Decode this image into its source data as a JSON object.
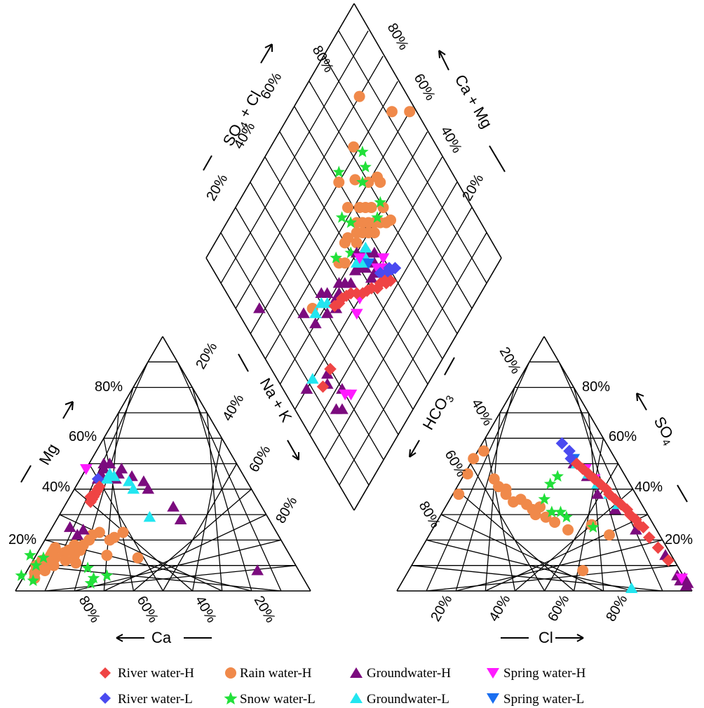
{
  "chart_data": {
    "type": "scatter",
    "subtype": "piper-diagram",
    "title": "",
    "axes": {
      "cation_left": "Mg",
      "cation_bottom": "Ca",
      "anion_right": "SO4",
      "anion_bottom": "Cl",
      "diamond_upper_left": "SO4 + Cl",
      "diamond_upper_right": "Ca + Mg",
      "diamond_lower_left": "Na + K",
      "diamond_lower_right": "HCO3"
    },
    "ticks": {
      "percent": [
        "20%",
        "40%",
        "60%",
        "80%"
      ]
    },
    "legend": {
      "placement": "bottom",
      "entries": [
        {
          "key": "river_h",
          "label": "River water-H",
          "color": "#ef4444",
          "marker": "diamond"
        },
        {
          "key": "rain_h",
          "label": "Rain water-H",
          "color": "#f0894a",
          "marker": "circle"
        },
        {
          "key": "ground_h",
          "label": "Groundwater-H",
          "color": "#7b0b7e",
          "marker": "triangle-up"
        },
        {
          "key": "spring_h",
          "label": "Spring water-H",
          "color": "#ff1aff",
          "marker": "triangle-down"
        },
        {
          "key": "river_l",
          "label": "River water-L",
          "color": "#4a4af0",
          "marker": "diamond"
        },
        {
          "key": "snow_l",
          "label": "Snow water-L",
          "color": "#22e03a",
          "marker": "star"
        },
        {
          "key": "ground_l",
          "label": "Groundwater-L",
          "color": "#22e6f0",
          "marker": "triangle-up"
        },
        {
          "key": "spring_l",
          "label": "Spring water-L",
          "color": "#1a6ef0",
          "marker": "triangle-down"
        }
      ]
    },
    "cation_points": {
      "river_h": [
        [
          40,
          52,
          8
        ],
        [
          38,
          54,
          8
        ],
        [
          37,
          55,
          8
        ],
        [
          39,
          53,
          8
        ],
        [
          36,
          56,
          8
        ],
        [
          41,
          51,
          8
        ],
        [
          35,
          57,
          8
        ],
        [
          37,
          56,
          7
        ]
      ],
      "river_l": [
        [
          44,
          50,
          6
        ]
      ],
      "rain_h": [
        [
          15,
          80,
          5
        ],
        [
          13,
          82,
          5
        ],
        [
          12,
          83,
          5
        ],
        [
          11,
          84,
          5
        ],
        [
          14,
          81,
          5
        ],
        [
          16,
          79,
          5
        ],
        [
          17,
          78,
          5
        ],
        [
          15,
          76,
          9
        ],
        [
          13,
          80,
          7
        ],
        [
          10,
          86,
          4
        ],
        [
          9,
          87,
          4
        ],
        [
          8,
          89,
          3
        ],
        [
          12,
          77,
          11
        ],
        [
          14,
          73,
          13
        ],
        [
          16,
          70,
          14
        ],
        [
          18,
          68,
          14
        ],
        [
          20,
          65,
          15
        ],
        [
          22,
          63,
          15
        ],
        [
          23,
          60,
          17
        ],
        [
          20,
          58,
          22
        ],
        [
          14,
          62,
          24
        ],
        [
          13,
          52,
          35
        ],
        [
          23,
          52,
          25
        ],
        [
          21,
          56,
          23
        ],
        [
          11,
          74,
          15
        ],
        [
          16,
          74,
          10
        ],
        [
          18,
          71,
          11
        ],
        [
          7,
          90,
          3
        ],
        [
          5,
          91,
          4
        ],
        [
          8,
          86,
          6
        ],
        [
          10,
          82,
          8
        ],
        [
          12,
          85,
          3
        ],
        [
          10,
          88,
          2
        ]
      ],
      "ground_h": [
        [
          50,
          45,
          5
        ],
        [
          48,
          46,
          6
        ],
        [
          46,
          48,
          6
        ],
        [
          44,
          50,
          6
        ],
        [
          50,
          43,
          7
        ],
        [
          46,
          42,
          12
        ],
        [
          44,
          44,
          12
        ],
        [
          48,
          40,
          12
        ],
        [
          45,
          38,
          17
        ],
        [
          43,
          35,
          22
        ],
        [
          40,
          35,
          25
        ],
        [
          33,
          30,
          37
        ],
        [
          28,
          30,
          42
        ],
        [
          24,
          65,
          11
        ],
        [
          25,
          69,
          6
        ],
        [
          22,
          68,
          10
        ],
        [
          8,
          14,
          78
        ]
      ],
      "ground_l": [
        [
          44,
          47,
          9
        ],
        [
          46,
          45,
          9
        ],
        [
          45,
          44,
          11
        ],
        [
          43,
          40,
          17
        ],
        [
          40,
          40,
          20
        ],
        [
          29,
          40,
          31
        ]
      ],
      "spring_h": [
        [
          48,
          52,
          0
        ]
      ],
      "spring_l": [],
      "snow_l": [
        [
          6,
          95,
          -1
        ],
        [
          10,
          88,
          2
        ],
        [
          14,
          88,
          -2
        ],
        [
          4,
          92,
          4
        ],
        [
          9,
          71,
          20
        ],
        [
          5,
          71,
          24
        ],
        [
          6,
          66,
          28
        ],
        [
          3,
          73,
          24
        ],
        [
          13,
          84,
          3
        ]
      ]
    },
    "anion_points": {
      "river_h": [
        [
          28,
          5,
          67
        ],
        [
          30,
          6,
          64
        ],
        [
          32,
          6,
          62
        ],
        [
          34,
          7,
          59
        ],
        [
          36,
          8,
          56
        ],
        [
          38,
          9,
          53
        ],
        [
          40,
          9,
          51
        ],
        [
          42,
          10,
          48
        ],
        [
          44,
          11,
          45
        ],
        [
          46,
          12,
          42
        ],
        [
          48,
          13,
          39
        ],
        [
          50,
          14,
          36
        ],
        [
          25,
          4,
          71
        ],
        [
          26,
          5,
          69
        ],
        [
          12,
          2,
          86
        ],
        [
          17,
          3,
          80
        ],
        [
          21,
          4,
          75
        ]
      ],
      "river_l": [
        [
          52,
          15,
          33
        ],
        [
          55,
          14,
          31
        ],
        [
          58,
          15,
          27
        ]
      ],
      "rain_h": [
        [
          55,
          43,
          2
        ],
        [
          52,
          48,
          0
        ],
        [
          46,
          53,
          1
        ],
        [
          38,
          60,
          2
        ],
        [
          44,
          45,
          11
        ],
        [
          41,
          45,
          14
        ],
        [
          40,
          43,
          17
        ],
        [
          38,
          44,
          18
        ],
        [
          35,
          43,
          22
        ],
        [
          36,
          40,
          24
        ],
        [
          34,
          39,
          27
        ],
        [
          32,
          38,
          30
        ],
        [
          30,
          38,
          32
        ],
        [
          29,
          35,
          36
        ],
        [
          33,
          35,
          32
        ],
        [
          27,
          33,
          40
        ],
        [
          24,
          30,
          46
        ],
        [
          22,
          17,
          61
        ],
        [
          26,
          21,
          53
        ],
        [
          8,
          33,
          59
        ]
      ],
      "ground_h": [
        [
          3,
          0,
          97
        ],
        [
          5,
          0,
          95
        ],
        [
          2,
          1,
          97
        ],
        [
          4,
          2,
          94
        ],
        [
          6,
          2,
          92
        ],
        [
          14,
          2,
          84
        ],
        [
          32,
          10,
          58
        ],
        [
          38,
          13,
          49
        ],
        [
          45,
          13,
          42
        ],
        [
          50,
          15,
          35
        ],
        [
          24,
          7,
          69
        ]
      ],
      "ground_l": [
        [
          34,
          8,
          58
        ],
        [
          38,
          9,
          53
        ],
        [
          42,
          11,
          47
        ],
        [
          46,
          12,
          42
        ],
        [
          50,
          14,
          36
        ],
        [
          1,
          20,
          79
        ]
      ],
      "spring_h": [
        [
          5,
          1,
          94
        ],
        [
          48,
          12,
          40
        ],
        [
          44,
          11,
          45
        ]
      ],
      "spring_l": [
        [
          52,
          14,
          34
        ]
      ],
      "snow_l": [
        [
          45,
          23,
          32
        ],
        [
          42,
          27,
          31
        ],
        [
          36,
          32,
          32
        ],
        [
          31,
          29,
          40
        ],
        [
          29,
          28,
          43
        ],
        [
          31,
          32,
          37
        ],
        [
          25,
          21,
          54
        ]
      ]
    },
    "diamond_points": {
      "river_h": [
        [
          50,
          38
        ],
        [
          48,
          39
        ],
        [
          46,
          40
        ],
        [
          44,
          42
        ],
        [
          42,
          44
        ],
        [
          40,
          45
        ],
        [
          38,
          46
        ],
        [
          36,
          46
        ],
        [
          34,
          47
        ],
        [
          52,
          36
        ],
        [
          54,
          36
        ],
        [
          56,
          34
        ],
        [
          20,
          36
        ],
        [
          14,
          35
        ],
        [
          56,
          35
        ],
        [
          58,
          33
        ]
      ],
      "river_l": [
        [
          62,
          34
        ],
        [
          60,
          35
        ],
        [
          58,
          36
        ],
        [
          56,
          38
        ],
        [
          60,
          36
        ]
      ],
      "rain_h": [
        [
          70,
          45
        ],
        [
          70,
          50
        ],
        [
          68,
          46
        ],
        [
          66,
          48
        ],
        [
          64,
          50
        ],
        [
          62,
          52
        ],
        [
          60,
          54
        ],
        [
          58,
          56
        ],
        [
          62,
          48
        ],
        [
          60,
          50
        ],
        [
          58,
          52
        ],
        [
          56,
          54
        ],
        [
          54,
          52
        ],
        [
          52,
          56
        ],
        [
          62,
          58
        ],
        [
          64,
          56
        ],
        [
          66,
          54
        ],
        [
          70,
          60
        ],
        [
          74,
          56
        ],
        [
          58,
          62
        ],
        [
          50,
          56
        ],
        [
          46,
          52
        ],
        [
          44,
          54
        ],
        [
          66,
          65
        ],
        [
          60,
          70
        ],
        [
          72,
          72
        ],
        [
          84,
          80
        ],
        [
          92,
          66
        ],
        [
          98,
          60
        ],
        [
          26,
          54
        ],
        [
          74,
          58
        ]
      ],
      "ground_h": [
        [
          56,
          42
        ],
        [
          54,
          40
        ],
        [
          52,
          44
        ],
        [
          50,
          46
        ],
        [
          48,
          47
        ],
        [
          52,
          40
        ],
        [
          44,
          46
        ],
        [
          42,
          48
        ],
        [
          40,
          50
        ],
        [
          38,
          48
        ],
        [
          36,
          48
        ],
        [
          34,
          52
        ],
        [
          32,
          54
        ],
        [
          34,
          46
        ],
        [
          30,
          48
        ],
        [
          24,
          50
        ],
        [
          20,
          28
        ],
        [
          18,
          36
        ],
        [
          16,
          34
        ],
        [
          14,
          26
        ],
        [
          8,
          40
        ],
        [
          22,
          56
        ],
        [
          16,
          24
        ],
        [
          58,
          44
        ],
        [
          56,
          46
        ],
        [
          54,
          48
        ],
        [
          52,
          50
        ],
        [
          8,
          72
        ]
      ],
      "ground_l": [
        [
          56,
          48
        ],
        [
          54,
          46
        ],
        [
          52,
          46
        ],
        [
          50,
          48
        ],
        [
          32,
          50
        ],
        [
          30,
          52
        ],
        [
          26,
          52
        ],
        [
          12,
          40
        ]
      ],
      "spring_h": [
        [
          60,
          40
        ],
        [
          58,
          38
        ],
        [
          56,
          40
        ],
        [
          52,
          48
        ],
        [
          44,
          40
        ],
        [
          40,
          38
        ],
        [
          20,
          26
        ],
        [
          22,
          24
        ]
      ],
      "spring_l": [
        [
          54,
          44
        ]
      ],
      "snow_l": [
        [
          70,
          52
        ],
        [
          66,
          50
        ],
        [
          68,
          62
        ],
        [
          72,
          64
        ],
        [
          74,
          68
        ],
        [
          50,
          52
        ],
        [
          56,
          58
        ],
        [
          44,
          56
        ],
        [
          62,
          72
        ],
        [
          54,
          62
        ]
      ]
    }
  }
}
